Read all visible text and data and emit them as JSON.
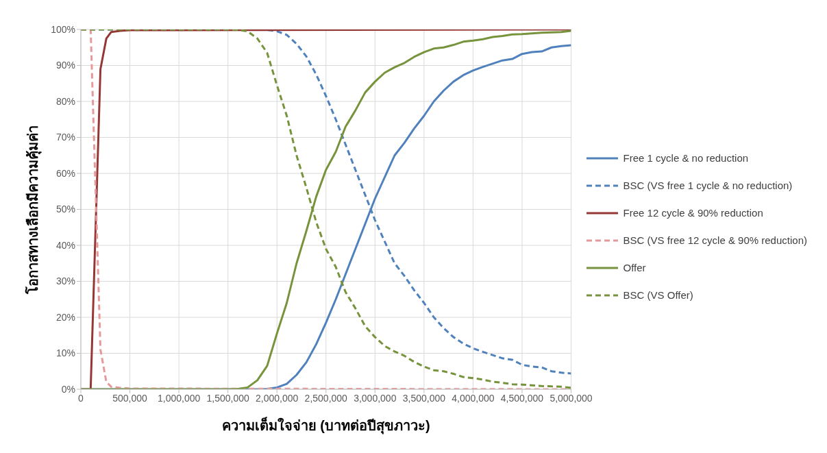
{
  "chart_data": {
    "type": "line",
    "xlabel": "ความเต็มใจจ่าย (บาทต่อปีสุขภาวะ)",
    "ylabel": "โอกาสทางเลือกมีความคุ้มค่า",
    "xlim": [
      0,
      5000000
    ],
    "xticks": [
      0,
      {
        "value": 500000,
        "label": "500,000"
      },
      {
        "value": 1000000,
        "label": "1,000,000"
      },
      {
        "value": 1500000,
        "label": "1,500,000"
      },
      {
        "value": 2000000,
        "label": "2,000,000"
      },
      {
        "value": 2500000,
        "label": "2,500,000"
      },
      {
        "value": 3000000,
        "label": "3,000,000"
      },
      {
        "value": 3500000,
        "label": "3,500,000"
      },
      {
        "value": 4000000,
        "label": "4,000,000"
      },
      {
        "value": 4500000,
        "label": "4,500,000"
      },
      {
        "value": 5000000,
        "label": "5,000,000"
      }
    ],
    "ylim": [
      0,
      100
    ],
    "yticks": [
      {
        "value": 0,
        "label": "0%"
      },
      {
        "value": 10,
        "label": "10%"
      },
      {
        "value": 20,
        "label": "20%"
      },
      {
        "value": 30,
        "label": "30%"
      },
      {
        "value": 40,
        "label": "40%"
      },
      {
        "value": 50,
        "label": "50%"
      },
      {
        "value": 60,
        "label": "60%"
      },
      {
        "value": 70,
        "label": "70%"
      },
      {
        "value": 80,
        "label": "80%"
      },
      {
        "value": 90,
        "label": "90%"
      },
      {
        "value": 100,
        "label": "100%"
      }
    ],
    "grid": true,
    "legend": "right",
    "marker": "none",
    "series": [
      {
        "name": "Free 1 cycle & no reduction",
        "color": "#4f81bd",
        "line_style": "solid",
        "x": [
          0,
          1800000,
          1900000,
          2000000,
          2100000,
          2200000,
          2300000,
          2400000,
          2500000,
          2600000,
          2700000,
          2800000,
          2900000,
          3000000,
          3100000,
          3200000,
          3300000,
          3400000,
          3500000,
          3600000,
          3700000,
          3800000,
          3900000,
          4000000,
          4100000,
          4200000,
          4300000,
          4400000,
          4500000,
          4600000,
          4700000,
          4800000,
          4900000,
          5000000
        ],
        "values": [
          0,
          0,
          0.1,
          0.5,
          1.5,
          4,
          7.5,
          12.5,
          18.5,
          25,
          32,
          39,
          46,
          53,
          59,
          65,
          68.5,
          72.5,
          76,
          80,
          83,
          85.5,
          87.3,
          88.6,
          89.6,
          90.5,
          91.4,
          91.8,
          93.2,
          93.7,
          93.9,
          95,
          95.4,
          95.6
        ]
      },
      {
        "name": "BSC (VS free 1 cycle & no reduction)",
        "color": "#4f81bd",
        "line_style": "dashed",
        "x": [
          0,
          1800000,
          1900000,
          2000000,
          2100000,
          2200000,
          2300000,
          2400000,
          2500000,
          2600000,
          2700000,
          2800000,
          2900000,
          3000000,
          3100000,
          3200000,
          3300000,
          3400000,
          3500000,
          3600000,
          3700000,
          3800000,
          3900000,
          4000000,
          4100000,
          4200000,
          4300000,
          4400000,
          4500000,
          4600000,
          4700000,
          4800000,
          4900000,
          5000000
        ],
        "values": [
          100,
          100,
          99.9,
          99.5,
          98.5,
          96,
          92.5,
          87.5,
          81.5,
          75,
          68,
          61,
          54,
          47,
          41,
          35,
          31.5,
          27.5,
          24,
          20,
          17,
          14.5,
          12.7,
          11.4,
          10.4,
          9.5,
          8.6,
          8.2,
          6.8,
          6.3,
          6.1,
          5,
          4.6,
          4.4
        ]
      },
      {
        "name": "Free 12 cycle & 90% reduction",
        "color": "#953735",
        "line_style": "solid",
        "x": [
          0,
          100000,
          200000,
          260000,
          310000,
          400000,
          500000,
          5000000
        ],
        "values": [
          0,
          0,
          89,
          97.5,
          99.3,
          99.6,
          99.8,
          100
        ]
      },
      {
        "name": "BSC (VS free 12 cycle & 90% reduction)",
        "color": "#e6999a",
        "line_style": "dashed",
        "x": [
          0,
          100000,
          200000,
          260000,
          310000,
          400000,
          500000,
          5000000
        ],
        "values": [
          100,
          100,
          11,
          2,
          0.7,
          0.4,
          0.2,
          0
        ]
      },
      {
        "name": "Offer",
        "color": "#77933c",
        "line_style": "solid",
        "x": [
          0,
          1500000,
          1600000,
          1700000,
          1800000,
          1900000,
          2000000,
          2100000,
          2200000,
          2300000,
          2400000,
          2500000,
          2600000,
          2700000,
          2800000,
          2900000,
          3000000,
          3100000,
          3200000,
          3300000,
          3400000,
          3500000,
          3600000,
          3700000,
          3800000,
          3900000,
          4000000,
          4100000,
          4200000,
          4300000,
          4400000,
          4500000,
          4600000,
          4700000,
          4800000,
          4900000,
          5000000
        ],
        "values": [
          0,
          0,
          0.1,
          0.5,
          2.5,
          6.5,
          15.5,
          24,
          35,
          44,
          53.5,
          61,
          66,
          73,
          77.5,
          82.5,
          85.5,
          88,
          89.5,
          90.7,
          92.4,
          93.7,
          94.7,
          95,
          95.7,
          96.6,
          96.9,
          97.3,
          97.9,
          98.2,
          98.6,
          98.7,
          98.9,
          99.1,
          99.2,
          99.3,
          99.6
        ]
      },
      {
        "name": "BSC (VS Offer)",
        "color": "#77933c",
        "line_style": "dashed",
        "x": [
          0,
          1500000,
          1600000,
          1700000,
          1800000,
          1900000,
          2000000,
          2100000,
          2200000,
          2300000,
          2400000,
          2500000,
          2600000,
          2700000,
          2800000,
          2900000,
          3000000,
          3100000,
          3200000,
          3300000,
          3400000,
          3500000,
          3600000,
          3700000,
          3800000,
          3900000,
          4000000,
          4100000,
          4200000,
          4300000,
          4400000,
          4500000,
          4600000,
          4700000,
          4800000,
          4900000,
          5000000
        ],
        "values": [
          100,
          100,
          99.9,
          99.5,
          97.5,
          93.5,
          84.5,
          76,
          65,
          56,
          46.5,
          39,
          34,
          27,
          22.5,
          17.5,
          14.5,
          12,
          10.5,
          9.3,
          7.6,
          6.3,
          5.3,
          5,
          4.3,
          3.4,
          3.1,
          2.7,
          2.1,
          1.8,
          1.4,
          1.3,
          1.1,
          0.9,
          0.8,
          0.7,
          0.4
        ]
      }
    ]
  }
}
